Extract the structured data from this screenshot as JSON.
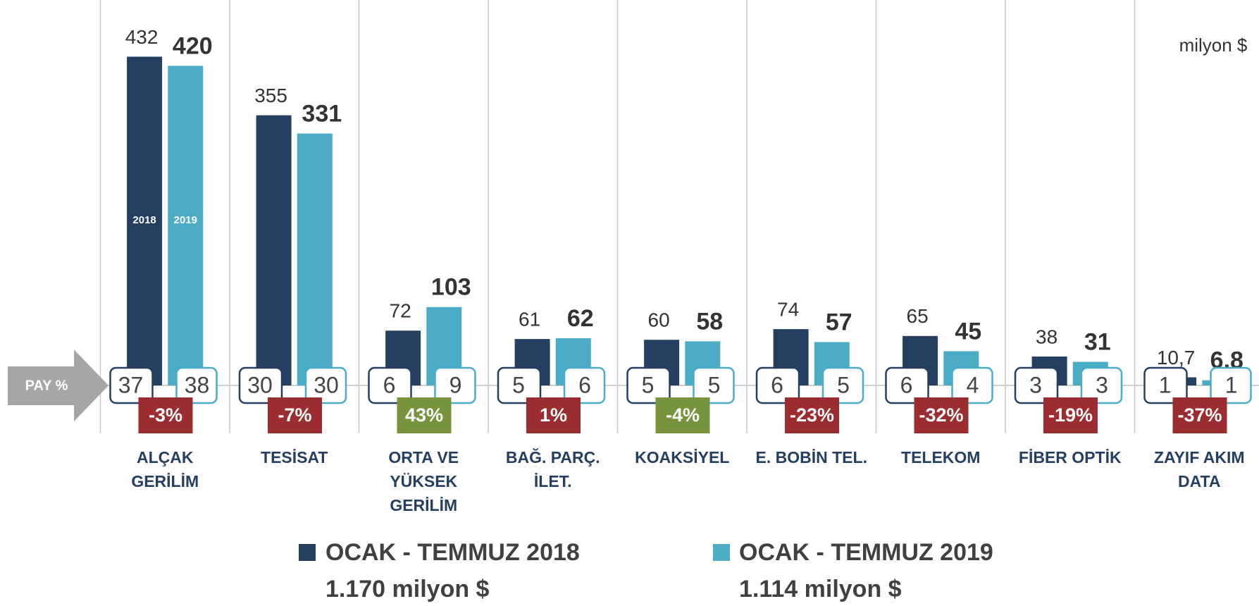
{
  "chart_data": {
    "type": "bar",
    "unit": "milyon $",
    "categories": [
      "ALÇAK\nGERİLİM",
      "TESİSAT",
      "ORTA VE\nYÜKSEK\nGERİLİM",
      "BAĞ. PARÇ.\nİLET.",
      "KOAKSİYEL",
      "E. BOBİN TEL.",
      "TELEKOM",
      "FİBER OPTİK",
      "ZAYIF AKIM\nDATA"
    ],
    "ylim": [
      0,
      450
    ],
    "series": [
      {
        "name": "OCAK - TEMMUZ 2018",
        "short_name": "2018",
        "total_label": "1.170 milyon $",
        "color": "#243f60",
        "values": [
          432,
          355,
          72,
          61,
          60,
          74,
          65,
          38,
          10.7
        ],
        "value_labels": [
          "432",
          "355",
          "72",
          "61",
          "60",
          "74",
          "65",
          "38",
          "10,7"
        ],
        "shares": [
          37,
          30,
          6,
          5,
          5,
          6,
          6,
          3,
          1
        ]
      },
      {
        "name": "OCAK - TEMMUZ  2019",
        "short_name": "2019",
        "total_label": "1.114 milyon $",
        "color": "#4bacc6",
        "values": [
          420,
          331,
          103,
          62,
          58,
          57,
          45,
          31,
          6.8
        ],
        "value_labels": [
          "420",
          "331",
          "103",
          "62",
          "58",
          "57",
          "45",
          "31",
          "6,8"
        ],
        "shares": [
          38,
          30,
          9,
          6,
          5,
          5,
          4,
          3,
          1
        ]
      }
    ],
    "share_label": "PAY %",
    "changes": {
      "values": [
        -3,
        -7,
        43,
        1,
        -4,
        -23,
        -32,
        -19,
        -37
      ],
      "value_labels": [
        "-3%",
        "-7%",
        "43%",
        "1%",
        "-4%",
        "-23%",
        "-32%",
        "-19%",
        "-37%"
      ],
      "colors": [
        "#9b2d30",
        "#9b2d30",
        "#77933c",
        "#9b2d30",
        "#77933c",
        "#9b2d30",
        "#9b2d30",
        "#9b2d30",
        "#9b2d30"
      ]
    }
  }
}
